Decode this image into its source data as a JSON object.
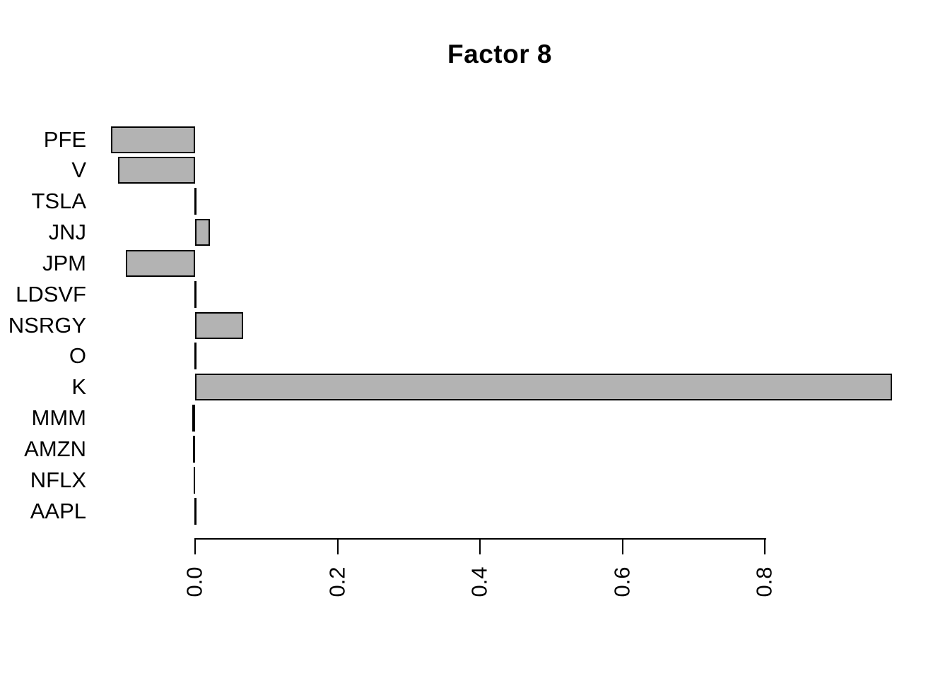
{
  "title": "Factor 8",
  "chart_data": {
    "type": "bar",
    "orientation": "horizontal",
    "title": "Factor 8",
    "categories": [
      "PFE",
      "V",
      "TSLA",
      "JNJ",
      "JPM",
      "LDSVF",
      "NSRGY",
      "O",
      "K",
      "MMM",
      "AMZN",
      "NFLX",
      "AAPL"
    ],
    "values": [
      -0.118,
      -0.108,
      0.0,
      0.021,
      -0.097,
      0.0,
      0.067,
      0.0,
      0.979,
      -0.003,
      -0.002,
      -0.001,
      0.0
    ],
    "xlabel": "",
    "ylabel": "",
    "x_ticks": [
      0.0,
      0.2,
      0.4,
      0.6,
      0.8
    ],
    "x_tick_labels": [
      "0.0",
      "0.2",
      "0.4",
      "0.6",
      "0.8"
    ],
    "xlim": [
      0,
      0.8
    ],
    "grid": false,
    "legend": false,
    "colors": {
      "bar_fill": "#b3b3b3",
      "bar_border": "#000000",
      "axis": "#000000",
      "text": "#000000",
      "background": "#ffffff"
    }
  }
}
